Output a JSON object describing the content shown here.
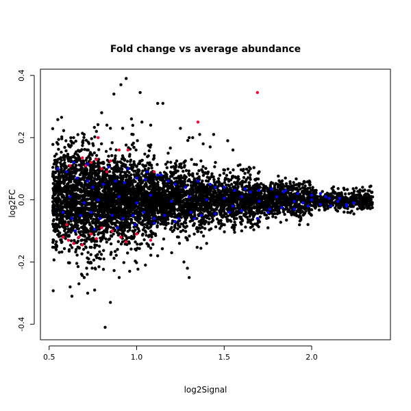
{
  "chart_data": {
    "type": "scatter",
    "title": "Fold change vs average abundance",
    "xlabel": "log2Signal",
    "ylabel": "log2FC",
    "xlim": [
      0.45,
      2.45
    ],
    "ylim": [
      -0.45,
      0.42
    ],
    "x_ticks": [
      0.5,
      1.0,
      1.5,
      2.0
    ],
    "x_tick_labels": [
      "0.5",
      "1.0",
      "1.5",
      "2.0"
    ],
    "y_ticks": [
      -0.4,
      -0.2,
      0.0,
      0.2,
      0.4
    ],
    "y_tick_labels": [
      "-0.4",
      "-0.2",
      "0.0",
      "0.2",
      "0.4"
    ],
    "grid": false,
    "legend": "none",
    "colors": {
      "background_points": "#000000",
      "red_points": "#ff0033",
      "blue_points": "#0000ff"
    },
    "series": [
      {
        "color": "#000000",
        "points": [
          [
            0.94,
            0.39
          ],
          [
            0.91,
            0.37
          ],
          [
            0.87,
            0.34
          ],
          [
            1.02,
            0.345
          ],
          [
            1.15,
            0.31
          ],
          [
            1.12,
            0.31
          ],
          [
            0.8,
            0.28
          ],
          [
            0.83,
            0.24
          ],
          [
            0.85,
            0.23
          ],
          [
            0.92,
            0.23
          ],
          [
            0.97,
            0.26
          ],
          [
            1.03,
            0.25
          ],
          [
            1.08,
            0.24
          ],
          [
            1.32,
            0.2
          ],
          [
            1.36,
            0.21
          ],
          [
            1.44,
            0.21
          ],
          [
            1.38,
            0.18
          ],
          [
            0.64,
            0.2
          ],
          [
            0.7,
            0.21
          ],
          [
            0.77,
            0.22
          ],
          [
            0.98,
            0.21
          ],
          [
            1.25,
            0.23
          ],
          [
            1.3,
            0.2
          ],
          [
            1.42,
            0.17
          ],
          [
            1.52,
            0.19
          ],
          [
            1.55,
            0.16
          ],
          [
            1.18,
            0.15
          ],
          [
            0.63,
            -0.31
          ],
          [
            0.62,
            -0.28
          ],
          [
            0.67,
            -0.27
          ],
          [
            0.72,
            -0.3
          ],
          [
            0.76,
            -0.29
          ],
          [
            0.82,
            -0.41
          ],
          [
            0.85,
            -0.33
          ],
          [
            1.29,
            -0.22
          ],
          [
            1.3,
            -0.25
          ],
          [
            1.27,
            -0.2
          ],
          [
            0.9,
            -0.25
          ],
          [
            0.96,
            -0.23
          ],
          [
            1.05,
            -0.21
          ],
          [
            0.7,
            -0.25
          ],
          [
            1.12,
            -0.18
          ],
          [
            1.2,
            -0.17
          ],
          [
            1.4,
            -0.14
          ],
          [
            1.45,
            0.12
          ],
          [
            1.6,
            -0.1
          ],
          [
            1.7,
            0.09
          ],
          [
            1.75,
            -0.09
          ],
          [
            1.85,
            0.07
          ],
          [
            2.02,
            0.03
          ],
          [
            2.08,
            -0.03
          ],
          [
            2.15,
            0.02
          ],
          [
            2.22,
            -0.02
          ],
          [
            2.28,
            0.01
          ],
          [
            2.32,
            -0.01
          ],
          [
            2.3,
            0.0
          ],
          [
            1.65,
            0.1
          ],
          [
            1.58,
            0.11
          ],
          [
            0.57,
            0.1
          ],
          [
            0.55,
            -0.1
          ],
          [
            0.54,
            0.05
          ],
          [
            0.53,
            -0.02
          ]
        ]
      },
      {
        "color": "#ff0033",
        "points": [
          [
            1.69,
            0.345
          ],
          [
            1.35,
            0.25
          ],
          [
            0.78,
            0.2
          ],
          [
            0.9,
            0.16
          ],
          [
            0.95,
            0.16
          ],
          [
            0.69,
            0.135
          ],
          [
            0.74,
            0.12
          ],
          [
            0.62,
            0.11
          ],
          [
            0.71,
            0.11
          ],
          [
            0.77,
            0.13
          ],
          [
            0.85,
            0.125
          ],
          [
            0.8,
            0.1
          ],
          [
            0.83,
            0.09
          ],
          [
            1.1,
            0.09
          ],
          [
            0.61,
            -0.13
          ],
          [
            0.64,
            -0.14
          ],
          [
            0.69,
            -0.145
          ],
          [
            0.67,
            -0.12
          ],
          [
            0.74,
            -0.11
          ],
          [
            0.8,
            -0.09
          ],
          [
            0.86,
            -0.1
          ],
          [
            0.91,
            -0.12
          ],
          [
            0.94,
            -0.135
          ],
          [
            1.0,
            -0.11
          ],
          [
            1.08,
            -0.13
          ],
          [
            0.58,
            -0.12
          ],
          [
            0.6,
            -0.08
          ],
          [
            0.77,
            -0.125
          ]
        ]
      },
      {
        "color": "#0000ff",
        "points": [
          [
            0.55,
            0.1
          ],
          [
            0.6,
            0.09
          ],
          [
            0.66,
            0.07
          ],
          [
            0.72,
            0.06
          ],
          [
            0.75,
            0.04
          ],
          [
            0.81,
            0.05
          ],
          [
            0.88,
            0.06
          ],
          [
            0.93,
            0.055
          ],
          [
            1.0,
            0.07
          ],
          [
            1.05,
            0.065
          ],
          [
            1.12,
            0.08
          ],
          [
            1.18,
            0.06
          ],
          [
            1.22,
            0.05
          ],
          [
            1.28,
            0.04
          ],
          [
            1.35,
            0.06
          ],
          [
            1.42,
            0.05
          ],
          [
            1.5,
            0.04
          ],
          [
            1.56,
            0.03
          ],
          [
            1.62,
            0.035
          ],
          [
            1.7,
            0.03
          ],
          [
            1.77,
            0.035
          ],
          [
            1.84,
            0.025
          ],
          [
            1.92,
            0.02
          ],
          [
            2.0,
            0.015
          ],
          [
            2.08,
            0.01
          ],
          [
            2.16,
            0.005
          ],
          [
            2.24,
            -0.01
          ],
          [
            0.58,
            -0.04
          ],
          [
            0.63,
            -0.06
          ],
          [
            0.68,
            -0.05
          ],
          [
            0.74,
            -0.04
          ],
          [
            0.79,
            -0.06
          ],
          [
            0.86,
            -0.05
          ],
          [
            0.92,
            -0.06
          ],
          [
            0.98,
            -0.05
          ],
          [
            1.04,
            -0.04
          ],
          [
            1.1,
            -0.06
          ],
          [
            1.16,
            -0.05
          ],
          [
            1.24,
            -0.06
          ],
          [
            1.31,
            -0.04
          ],
          [
            1.37,
            -0.05
          ],
          [
            1.45,
            -0.045
          ],
          [
            1.53,
            -0.04
          ],
          [
            1.6,
            -0.035
          ],
          [
            1.69,
            -0.06
          ],
          [
            1.76,
            -0.03
          ],
          [
            1.83,
            -0.025
          ],
          [
            1.9,
            -0.03
          ],
          [
            1.98,
            -0.02
          ],
          [
            2.05,
            -0.015
          ],
          [
            2.11,
            -0.02
          ],
          [
            2.2,
            -0.02
          ],
          [
            0.62,
            0.01
          ],
          [
            0.7,
            -0.01
          ],
          [
            0.78,
            0.0
          ],
          [
            0.9,
            0.01
          ],
          [
            1.0,
            -0.01
          ],
          [
            1.08,
            0.015
          ],
          [
            1.2,
            -0.005
          ],
          [
            1.3,
            0.01
          ],
          [
            1.4,
            0.0
          ],
          [
            1.5,
            0.005
          ],
          [
            1.6,
            0.01
          ],
          [
            1.7,
            -0.005
          ],
          [
            1.8,
            0.01
          ],
          [
            1.9,
            -0.005
          ],
          [
            2.0,
            0.0
          ],
          [
            2.1,
            0.005
          ],
          [
            2.2,
            -0.015
          ],
          [
            0.64,
            0.12
          ],
          [
            0.72,
            0.115
          ],
          [
            0.84,
            0.105
          ],
          [
            0.95,
            0.1
          ],
          [
            1.06,
            0.09
          ],
          [
            1.14,
            0.08
          ],
          [
            0.65,
            -0.1
          ],
          [
            0.76,
            -0.095
          ],
          [
            0.89,
            -0.09
          ],
          [
            0.99,
            -0.08
          ],
          [
            1.1,
            -0.075
          ],
          [
            1.22,
            -0.07
          ],
          [
            1.33,
            -0.06
          ],
          [
            1.45,
            0.04
          ],
          [
            1.55,
            -0.02
          ],
          [
            1.65,
            0.025
          ],
          [
            1.75,
            -0.04
          ],
          [
            1.85,
            0.03
          ],
          [
            1.95,
            -0.01
          ],
          [
            2.05,
            0.02
          ],
          [
            2.15,
            -0.005
          ]
        ]
      }
    ],
    "cloud_density": [
      {
        "x": [
          0.52,
          0.8
        ],
        "y_spread": 0.2,
        "count": 1400
      },
      {
        "x": [
          0.8,
          1.1
        ],
        "y_spread": 0.16,
        "count": 1500
      },
      {
        "x": [
          1.1,
          1.4
        ],
        "y_spread": 0.12,
        "count": 1100
      },
      {
        "x": [
          1.4,
          1.7
        ],
        "y_spread": 0.09,
        "count": 900
      },
      {
        "x": [
          1.7,
          2.0
        ],
        "y_spread": 0.065,
        "count": 700
      },
      {
        "x": [
          2.0,
          2.35
        ],
        "y_spread": 0.04,
        "count": 420
      }
    ]
  }
}
